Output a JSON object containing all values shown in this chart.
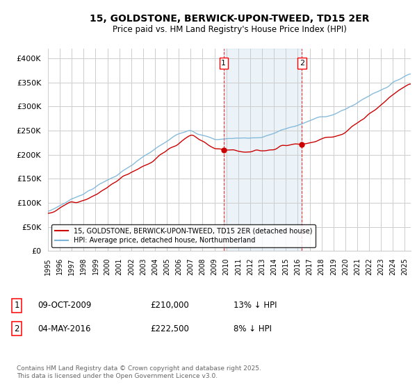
{
  "title": "15, GOLDSTONE, BERWICK-UPON-TWEED, TD15 2ER",
  "subtitle": "Price paid vs. HM Land Registry's House Price Index (HPI)",
  "legend_line1": "15, GOLDSTONE, BERWICK-UPON-TWEED, TD15 2ER (detached house)",
  "legend_line2": "HPI: Average price, detached house, Northumberland",
  "annotation1_date": "09-OCT-2009",
  "annotation1_price": "£210,000",
  "annotation1_hpi": "13% ↓ HPI",
  "annotation2_date": "04-MAY-2016",
  "annotation2_price": "£222,500",
  "annotation2_hpi": "8% ↓ HPI",
  "footer": "Contains HM Land Registry data © Crown copyright and database right 2025.\nThis data is licensed under the Open Government Licence v3.0.",
  "xlim_start": 1995.0,
  "xlim_end": 2025.5,
  "ylim_min": 0,
  "ylim_max": 420000,
  "vline1_x": 2009.77,
  "vline2_x": 2016.35,
  "sale1_price": 210000,
  "sale2_price": 222500,
  "red_color": "#cc0000",
  "blue_color": "#7ab4d8",
  "shade_color": "#ddeeff",
  "grid_color": "#cccccc",
  "background_color": "#ffffff"
}
